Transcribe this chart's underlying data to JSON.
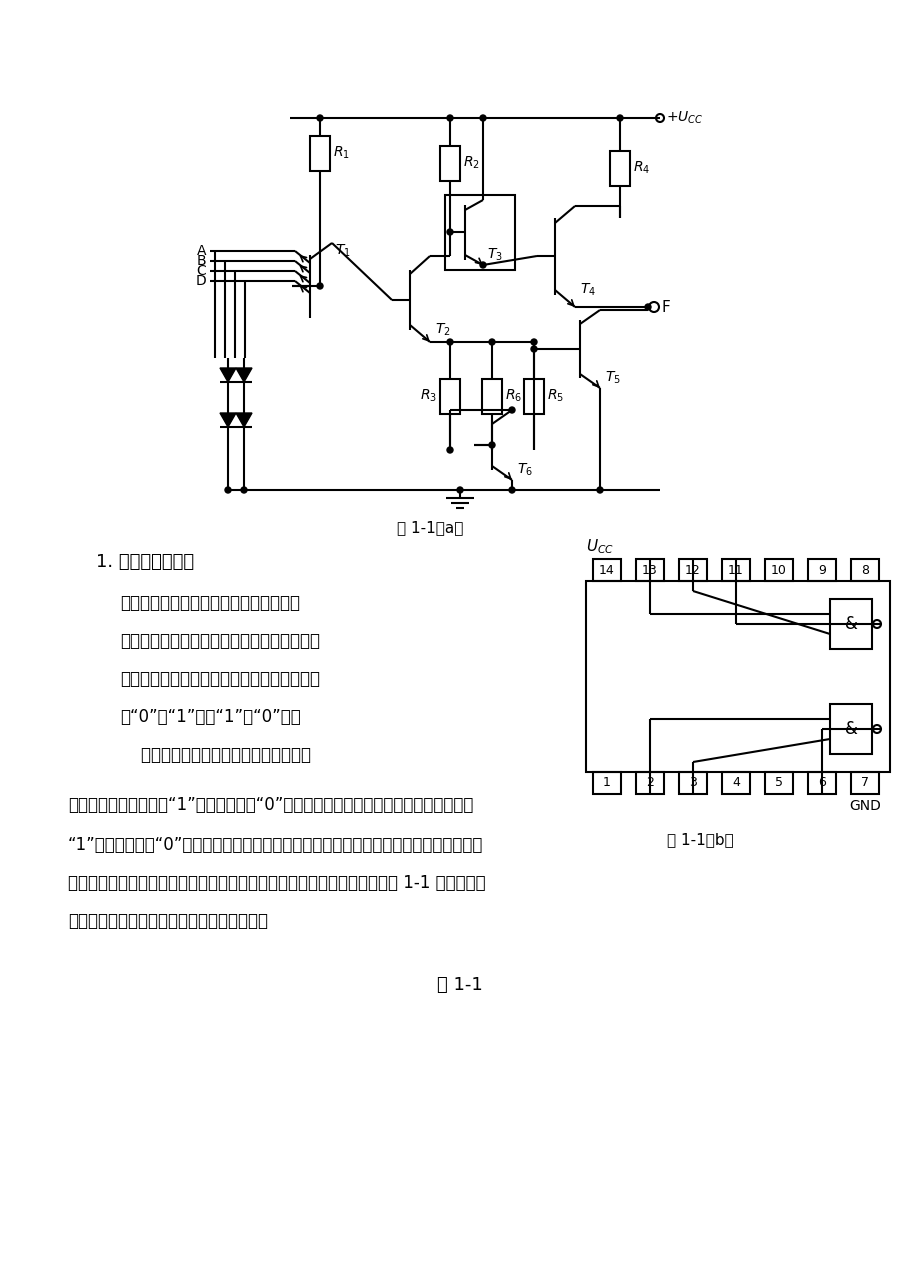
{
  "bg_color": "#ffffff",
  "page_width": 9.2,
  "page_height": 12.79,
  "fig_caption_1": "图 1-1（a）",
  "fig_caption_2": "图 1-1（b）",
  "table_caption": "表 1-1",
  "section_title": "1. 与非门逻辑功能",
  "paragraph1": "与非门逻辑功能是：当输入端有一种或一",
  "paragraph2": "种以上低电平时，输出端为高电平；只有输入",
  "paragraph3": "端所有为高电平时，输出端才是低电平。（即",
  "paragraph4": "有“0”得“1”，全“1”得“0”。）",
  "paragraph5": "    对与非门进行测试时，门输入端接数据",
  "paragraph6": "开关，开关向上为逻辑“1”，向下为逻辑“0”。门输出端接电平批示器，发光管亮为逻辑",
  "paragraph7": "“1”，不亮为逻辑“0”。基本测试办法是按真值表逐项测试，但有时按真值表逐项进行测试",
  "paragraph8": "似嫌多余，对于有四个输入端与非门，它有十六个最小项，事实上只要接表 1-1 所示五项进",
  "paragraph9": "行测试，便可以判断此门逻辑功能与否正常。"
}
